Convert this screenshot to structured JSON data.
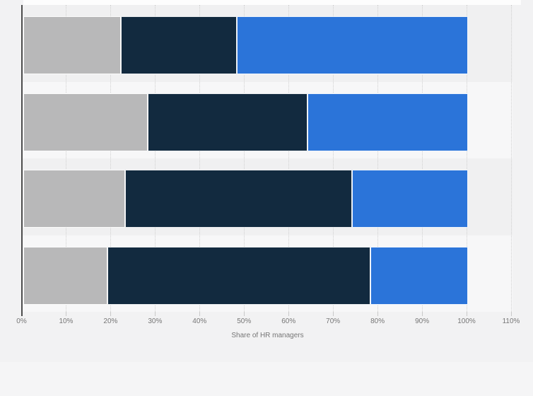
{
  "colors": {
    "page_bg": "#f2f2f3",
    "band_dark": "#f0f0f1",
    "band_light": "#f7f7f8",
    "axis_line": "#4d4d4d",
    "gridline": "#d0d0d0",
    "tick": "#c9c9c9",
    "text": "#767676",
    "top_strip": "#fdfdfd",
    "footer_strip": "#f5f5f6",
    "segment_gray": "#b8b8b9",
    "segment_navy": "#122a3f",
    "segment_blue": "#2b74d9"
  },
  "axis": {
    "title": "Share of HR managers",
    "tick_labels": [
      "0%",
      "10%",
      "20%",
      "30%",
      "40%",
      "50%",
      "60%",
      "70%",
      "80%",
      "90%",
      "100%",
      "110%"
    ]
  },
  "chart_data": {
    "type": "bar",
    "orientation": "horizontal",
    "stacked": true,
    "title": "",
    "xlabel": "Share of HR managers",
    "ylabel": "",
    "xlim": [
      0,
      110
    ],
    "x_tick_labels": [
      "0%",
      "10%",
      "20%",
      "30%",
      "40%",
      "50%",
      "60%",
      "70%",
      "80%",
      "90%",
      "100%",
      "110%"
    ],
    "grid": "vertical-dotted",
    "categories": [
      "",
      "",
      "",
      ""
    ],
    "series": [
      {
        "name": "gray-segment",
        "color": "#b8b8b9",
        "values": [
          22,
          28,
          23,
          19
        ]
      },
      {
        "name": "dark-navy-segment",
        "color": "#122a3f",
        "values": [
          26,
          36,
          51,
          59
        ]
      },
      {
        "name": "blue-segment",
        "color": "#2b74d9",
        "values": [
          52,
          36,
          26,
          22
        ]
      }
    ]
  }
}
